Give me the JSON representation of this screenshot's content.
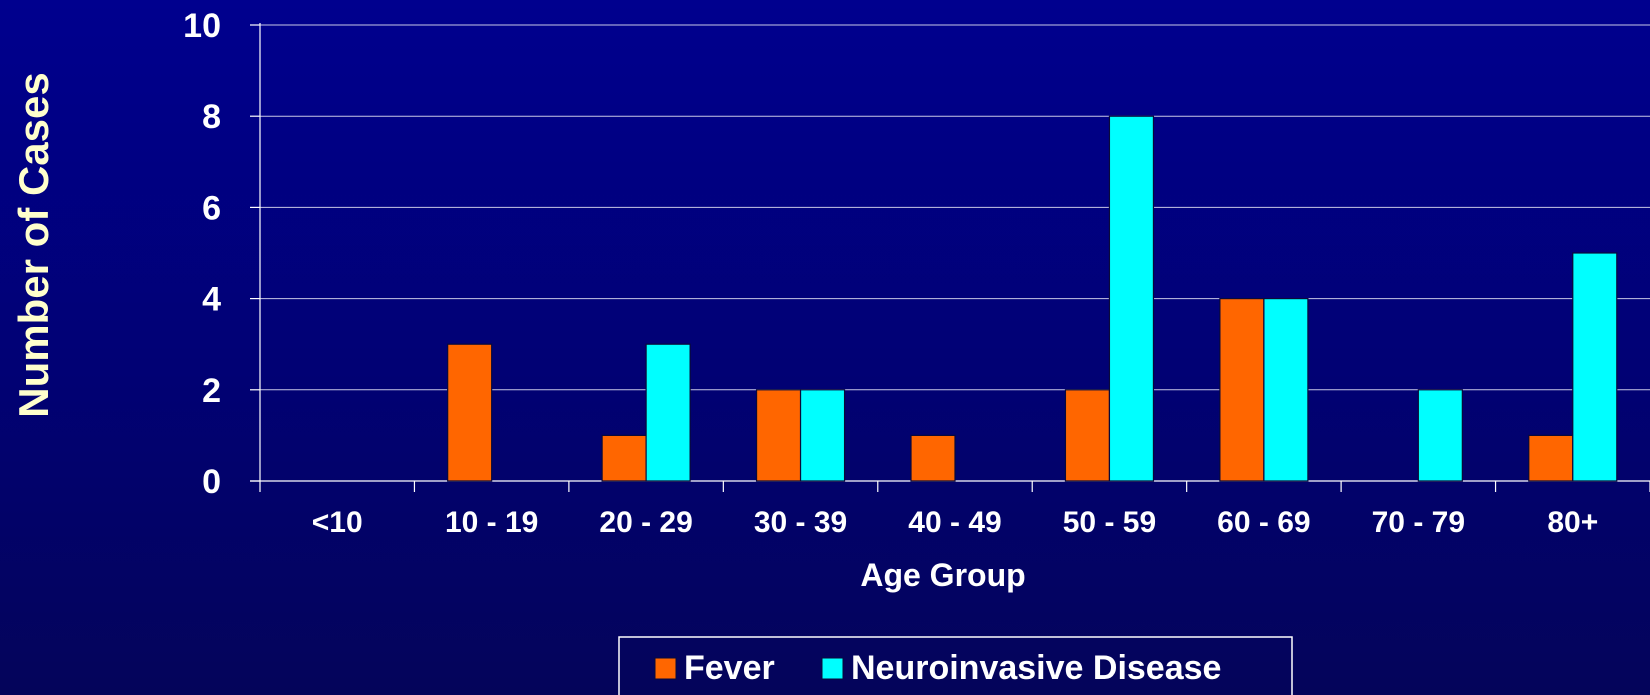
{
  "chart_data": {
    "type": "bar",
    "categories": [
      "<10",
      "10 - 19",
      "20 - 29",
      "30 - 39",
      "40 - 49",
      "50 - 59",
      "60 - 69",
      "70 - 79",
      "80+"
    ],
    "series": [
      {
        "name": "Fever",
        "values": [
          0,
          3,
          1,
          2,
          1,
          2,
          4,
          0,
          1
        ]
      },
      {
        "name": "Neuroinvasive Disease",
        "values": [
          0,
          0,
          3,
          2,
          0,
          8,
          4,
          2,
          5
        ]
      }
    ],
    "title": "",
    "xlabel": "Age Group",
    "ylabel": "Number of Cases",
    "ylim": [
      0,
      10
    ],
    "yticks": [
      "0",
      "2",
      "4",
      "6",
      "8",
      "10"
    ],
    "grid": true,
    "legend_position": "bottom",
    "colors": {
      "Fever": "#ff6600",
      "Neuroinvasive Disease": "#00ffff",
      "text": "#ffffff",
      "ylabel": "#ffffcc",
      "grid": "#c8c8e6"
    }
  }
}
